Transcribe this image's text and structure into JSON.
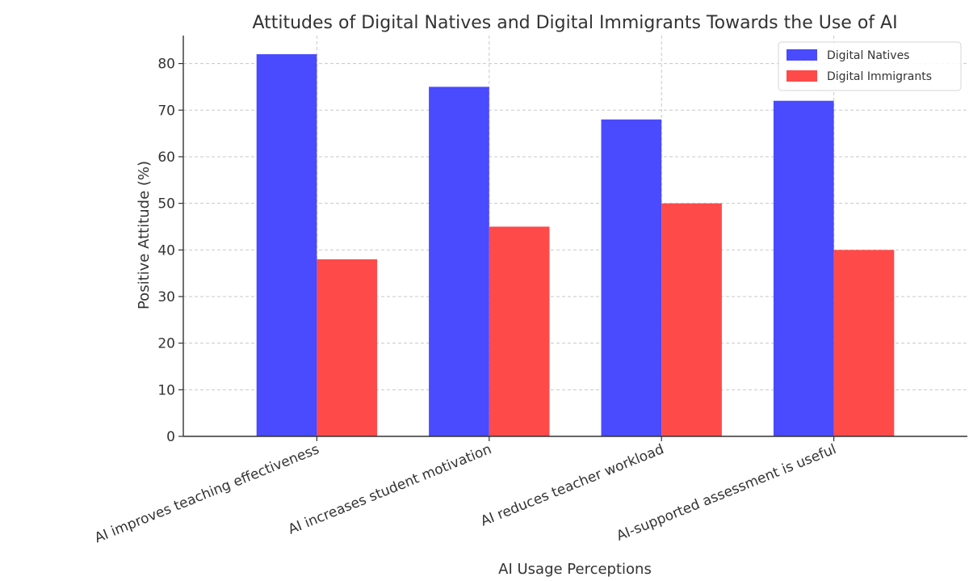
{
  "chart_data": {
    "type": "bar",
    "title": "Attitudes of Digital Natives and Digital Immigrants Towards the Use of AI",
    "xlabel": "AI Usage Perceptions",
    "ylabel": "Positive Attitude (%)",
    "categories": [
      "AI improves teaching effectiveness",
      "AI increases student motivation",
      "AI reduces teacher workload",
      "AI-supported assessment is useful"
    ],
    "series": [
      {
        "name": "Digital Natives",
        "values": [
          82,
          75,
          68,
          72
        ],
        "color": "#4a4aff"
      },
      {
        "name": "Digital Immigrants",
        "values": [
          38,
          45,
          50,
          40
        ],
        "color": "#ff4a4a"
      }
    ],
    "ylim": [
      0,
      86
    ],
    "yticks": [
      0,
      10,
      20,
      30,
      40,
      50,
      60,
      70,
      80
    ],
    "ytick_labels": [
      "0",
      "10",
      "20",
      "30",
      "40",
      "50",
      "60",
      "70",
      "80"
    ],
    "grid": true,
    "legend_position": "top-right"
  }
}
